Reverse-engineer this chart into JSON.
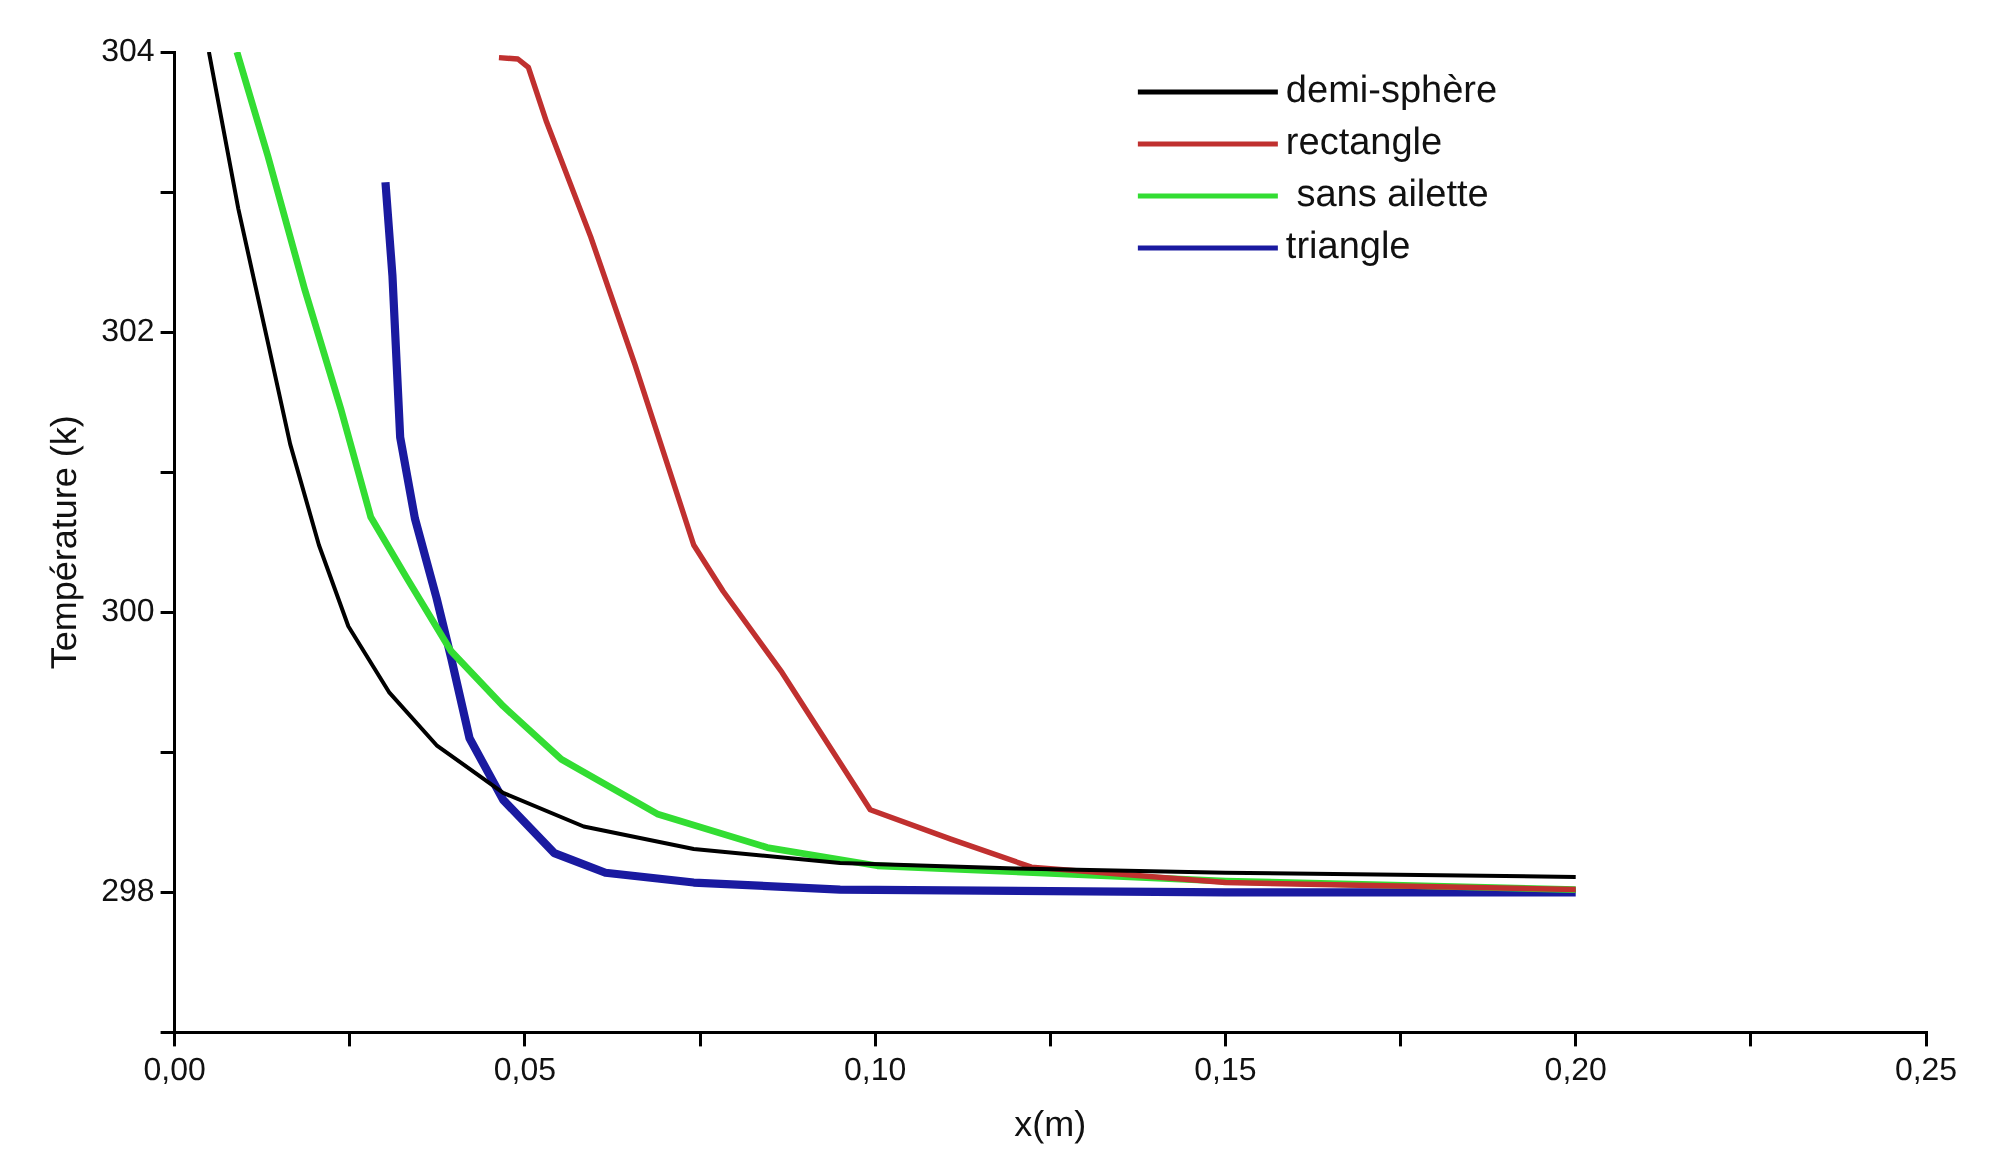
{
  "chart_data": {
    "type": "line",
    "xlabel": "x(m)",
    "ylabel": "Température (k)",
    "xlim": [
      0,
      0.25
    ],
    "ylim": [
      297,
      304
    ],
    "xticks": [
      {
        "value": 0,
        "label": "0,00"
      },
      {
        "value": 0.025,
        "label": null
      },
      {
        "value": 0.05,
        "label": "0,05"
      },
      {
        "value": 0.075,
        "label": null
      },
      {
        "value": 0.1,
        "label": "0,10"
      },
      {
        "value": 0.125,
        "label": null
      },
      {
        "value": 0.15,
        "label": "0,15"
      },
      {
        "value": 0.175,
        "label": null
      },
      {
        "value": 0.2,
        "label": "0,20"
      },
      {
        "value": 0.225,
        "label": null
      },
      {
        "value": 0.25,
        "label": "0,25"
      }
    ],
    "yticks": [
      {
        "value": 297,
        "label": null
      },
      298,
      {
        "value": 299,
        "label": null
      },
      300,
      {
        "value": 301,
        "label": null
      },
      302,
      {
        "value": 303,
        "label": null
      },
      304
    ],
    "grid": false,
    "legend": "top right",
    "marker": "none",
    "line_style": "solid",
    "series": [
      {
        "name": "demi-sphère",
        "color": "#000000",
        "x": [
          0.0049,
          0.0091,
          0.0133,
          0.0165,
          0.0206,
          0.0248,
          0.0306,
          0.0374,
          0.0469,
          0.0584,
          0.0741,
          0.095,
          0.12,
          0.15,
          0.2
        ],
        "values": [
          304,
          302.88,
          301.93,
          301.2,
          300.48,
          299.9,
          299.43,
          299.05,
          298.71,
          298.47,
          298.31,
          298.21,
          298.17,
          298.14,
          298.11
        ]
      },
      {
        "name": "rectangle",
        "color": "#c0302f",
        "x": [
          0.0463,
          0.049,
          0.0505,
          0.0531,
          0.0594,
          0.0657,
          0.0741,
          0.0783,
          0.0867,
          0.0993,
          0.1108,
          0.1223,
          0.15,
          0.2
        ],
        "values": [
          303.96,
          303.95,
          303.89,
          303.5,
          302.68,
          301.77,
          300.48,
          300.15,
          299.57,
          298.59,
          298.38,
          298.18,
          298.07,
          298.02
        ]
      },
      {
        "name": " sans ailette",
        "color": "#33dd33",
        "x": [
          0.0089,
          0.0133,
          0.0186,
          0.0238,
          0.028,
          0.0332,
          0.0395,
          0.0469,
          0.0552,
          0.0689,
          0.0846,
          0.1003,
          0.15,
          0.2
        ],
        "values": [
          304,
          303.26,
          302.3,
          301.44,
          300.68,
          300.24,
          299.72,
          299.33,
          298.95,
          298.56,
          298.32,
          298.19,
          298.08,
          298.02
        ]
      },
      {
        "name": "triangle",
        "color": "#1a1aa0",
        "x": [
          0.0301,
          0.0311,
          0.0322,
          0.0343,
          0.0374,
          0.0395,
          0.0421,
          0.0469,
          0.0542,
          0.0615,
          0.0741,
          0.095,
          0.15,
          0.2
        ],
        "values": [
          303.07,
          302.4,
          301.25,
          300.67,
          300.1,
          299.67,
          299.1,
          298.66,
          298.28,
          298.14,
          298.07,
          298.02,
          298.0,
          298.0
        ]
      }
    ]
  }
}
